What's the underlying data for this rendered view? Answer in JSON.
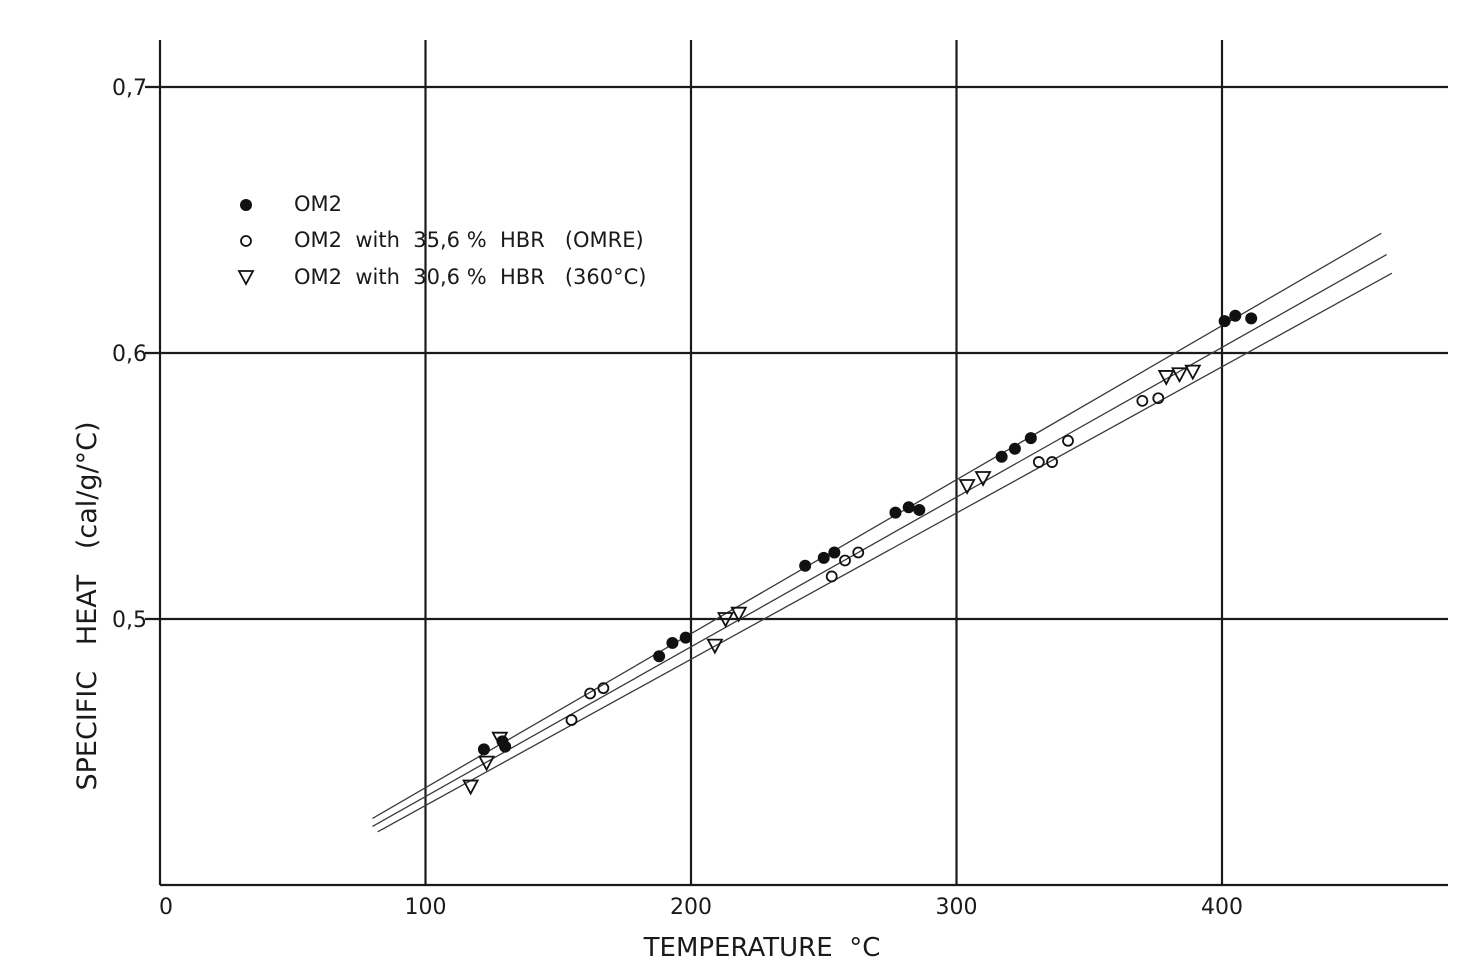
{
  "chart_data": {
    "type": "scatter",
    "title": "",
    "xlabel": "TEMPERATURE  °C",
    "ylabel": "SPECIFIC   HEAT   (cal/g/°C)",
    "xlim": [
      0,
      485
    ],
    "ylim": [
      0.4,
      0.715
    ],
    "x_ticks": [
      {
        "value": 0,
        "label": "0"
      },
      {
        "value": 100,
        "label": "100"
      },
      {
        "value": 200,
        "label": "200"
      },
      {
        "value": 300,
        "label": "300"
      },
      {
        "value": 400,
        "label": "400"
      }
    ],
    "y_ticks": [
      {
        "value": 0.5,
        "label": "0,5"
      },
      {
        "value": 0.6,
        "label": "0,6"
      },
      {
        "value": 0.7,
        "label": "0,7"
      }
    ],
    "grid": true,
    "legend_position": "top-left",
    "series": [
      {
        "name": "OM2",
        "marker": "filled-circle",
        "points": [
          [
            122,
            0.451
          ],
          [
            129,
            0.454
          ],
          [
            130,
            0.452
          ],
          [
            188,
            0.486
          ],
          [
            193,
            0.491
          ],
          [
            198,
            0.493
          ],
          [
            243,
            0.52
          ],
          [
            250,
            0.523
          ],
          [
            254,
            0.525
          ],
          [
            277,
            0.54
          ],
          [
            282,
            0.542
          ],
          [
            286,
            0.541
          ],
          [
            317,
            0.561
          ],
          [
            322,
            0.564
          ],
          [
            328,
            0.568
          ],
          [
            401,
            0.612
          ],
          [
            405,
            0.614
          ],
          [
            411,
            0.613
          ]
        ]
      },
      {
        "name": "OM2  with  35,6 %  HBR   (OMRE)",
        "marker": "open-circle",
        "points": [
          [
            155,
            0.462
          ],
          [
            162,
            0.472
          ],
          [
            167,
            0.474
          ],
          [
            253,
            0.516
          ],
          [
            258,
            0.522
          ],
          [
            263,
            0.525
          ],
          [
            331,
            0.559
          ],
          [
            336,
            0.559
          ],
          [
            342,
            0.567
          ],
          [
            370,
            0.582
          ],
          [
            376,
            0.583
          ]
        ]
      },
      {
        "name": "OM2  with  30,6 %  HBR   (360°C)",
        "marker": "open-triangle-down",
        "points": [
          [
            117,
            0.437
          ],
          [
            123,
            0.446
          ],
          [
            128,
            0.455
          ],
          [
            209,
            0.49
          ],
          [
            213,
            0.5
          ],
          [
            218,
            0.502
          ],
          [
            304,
            0.55
          ],
          [
            310,
            0.553
          ],
          [
            379,
            0.591
          ],
          [
            384,
            0.592
          ],
          [
            389,
            0.593
          ]
        ]
      }
    ],
    "fit_lines": [
      {
        "points": [
          [
            80,
            0.425
          ],
          [
            460,
            0.645
          ]
        ]
      },
      {
        "points": [
          [
            80,
            0.422
          ],
          [
            462,
            0.637
          ]
        ]
      },
      {
        "points": [
          [
            82,
            0.42
          ],
          [
            464,
            0.63
          ]
        ]
      }
    ]
  }
}
